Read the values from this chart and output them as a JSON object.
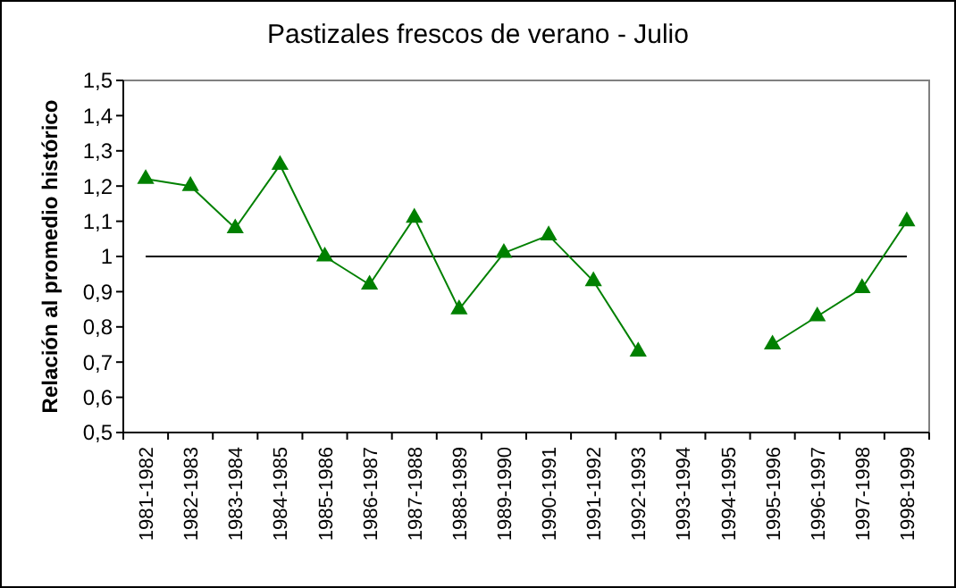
{
  "chart_data": {
    "type": "line",
    "title": "Pastizales frescos de verano - Julio",
    "ylabel": "Relación al promedio histórico",
    "categories": [
      "1981-1982",
      "1982-1983",
      "1983-1984",
      "1984-1985",
      "1985-1986",
      "1986-1987",
      "1987-1988",
      "1988-1989",
      "1989-1990",
      "1990-1991",
      "1991-1992",
      "1992-1993",
      "1993-1994",
      "1994-1995",
      "1995-1996",
      "1996-1997",
      "1997-1998",
      "1998-1999"
    ],
    "series": [
      {
        "color": "#008000",
        "values": [
          1.22,
          1.2,
          1.08,
          1.26,
          1.0,
          0.92,
          1.11,
          0.85,
          1.01,
          1.06,
          0.93,
          0.73,
          null,
          null,
          0.75,
          0.83,
          0.91,
          1.1
        ]
      }
    ],
    "ylim": [
      0.5,
      1.5
    ],
    "yticks": [
      {
        "value": 0.5,
        "label": "0,5"
      },
      {
        "value": 0.6,
        "label": "0,6"
      },
      {
        "value": 0.7,
        "label": "0,7"
      },
      {
        "value": 0.8,
        "label": "0,8"
      },
      {
        "value": 0.9,
        "label": "0,9"
      },
      1,
      {
        "value": 1.1,
        "label": "1,1"
      },
      {
        "value": 1.2,
        "label": "1,2"
      },
      {
        "value": 1.3,
        "label": "1,3"
      },
      {
        "value": 1.4,
        "label": "1,4"
      },
      {
        "value": 1.5,
        "label": "1,5"
      }
    ],
    "ref_lines": [
      {
        "axis": "y",
        "value": 1,
        "color": "#000000"
      }
    ],
    "marker": "triangle",
    "grid": false
  }
}
